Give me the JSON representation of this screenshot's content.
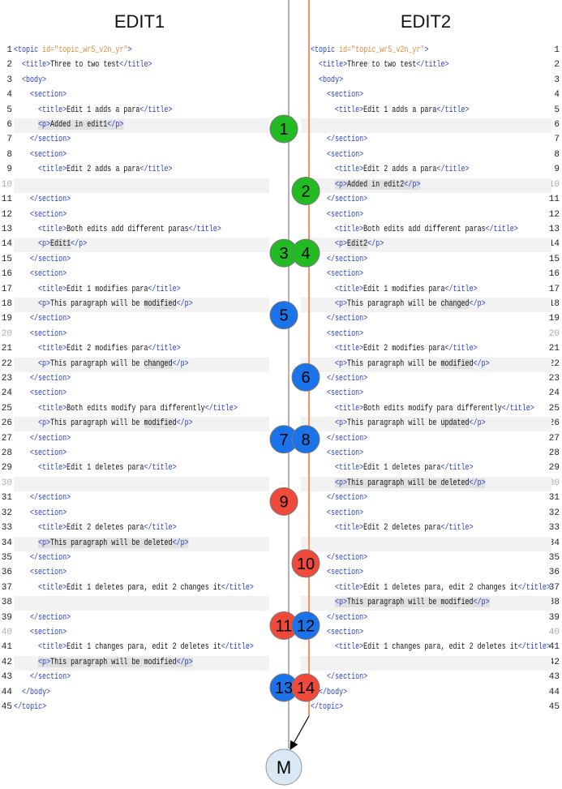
{
  "headers": {
    "left": "EDIT1",
    "right": "EDIT2"
  },
  "colors": {
    "add": "#22bb22",
    "modify": "#1a73e8",
    "delete": "#f04a3a",
    "edit1_line": "#9a9a9a",
    "edit2_line": "#f4936b",
    "merge": "#d8e9f5"
  },
  "merge_label": "M",
  "left": [
    {
      "n": 1,
      "i": 0,
      "code": "<topic id=\"topic_wr5_v2n_yr\">"
    },
    {
      "n": 2,
      "i": 1,
      "code": "<title>Three to two test</title>"
    },
    {
      "n": 3,
      "i": 1,
      "code": "<body>"
    },
    {
      "n": 4,
      "i": 2,
      "code": "<section>"
    },
    {
      "n": 5,
      "i": 3,
      "code": "<title>Edit 1 adds a para</title>"
    },
    {
      "n": 6,
      "i": 3,
      "code": "<p>Added in edit1</p>",
      "band": true,
      "mark": "*"
    },
    {
      "n": 7,
      "i": 2,
      "code": "</section>"
    },
    {
      "n": 8,
      "i": 2,
      "code": "<section>"
    },
    {
      "n": 9,
      "i": 3,
      "code": "<title>Edit 2 adds a para</title>"
    },
    {
      "n": 10,
      "i": 3,
      "code": "",
      "band": true
    },
    {
      "n": 11,
      "i": 2,
      "code": "</section>"
    },
    {
      "n": 12,
      "i": 2,
      "code": "<section>"
    },
    {
      "n": 13,
      "i": 3,
      "code": "<title>Both edits add different paras</title>"
    },
    {
      "n": 14,
      "i": 3,
      "code": "<p>Edit1</p>",
      "band": true,
      "mark": "Edit1"
    },
    {
      "n": 15,
      "i": 2,
      "code": "</section>"
    },
    {
      "n": 16,
      "i": 2,
      "code": "<section>"
    },
    {
      "n": 17,
      "i": 3,
      "code": "<title>Edit 1 modifies para</title>"
    },
    {
      "n": 18,
      "i": 3,
      "code": "<p>This paragraph will be modified</p>",
      "band": true,
      "mark": "modified"
    },
    {
      "n": 19,
      "i": 2,
      "code": "</section>"
    },
    {
      "n": 20,
      "i": 2,
      "code": "<section>"
    },
    {
      "n": 21,
      "i": 3,
      "code": "<title>Edit 2 modifies para</title>"
    },
    {
      "n": 22,
      "i": 3,
      "code": "<p>This paragraph will be changed</p>",
      "band": true,
      "mark": "changed"
    },
    {
      "n": 23,
      "i": 2,
      "code": "</section>"
    },
    {
      "n": 24,
      "i": 2,
      "code": "<section>"
    },
    {
      "n": 25,
      "i": 3,
      "code": "<title>Both edits modify para differently</title>"
    },
    {
      "n": 26,
      "i": 3,
      "code": "<p>This paragraph will be modified</p>",
      "band": true,
      "mark": "modified"
    },
    {
      "n": 27,
      "i": 2,
      "code": "</section>"
    },
    {
      "n": 28,
      "i": 2,
      "code": "<section>"
    },
    {
      "n": 29,
      "i": 3,
      "code": "<title>Edit 1 deletes para</title>"
    },
    {
      "n": 30,
      "i": 3,
      "code": "",
      "band": true
    },
    {
      "n": 31,
      "i": 2,
      "code": "</section>"
    },
    {
      "n": 32,
      "i": 2,
      "code": "<section>"
    },
    {
      "n": 33,
      "i": 3,
      "code": "<title>Edit 2 deletes para</title>"
    },
    {
      "n": 34,
      "i": 3,
      "code": "<p>This paragraph will be deleted</p>",
      "band": true,
      "mark": "*"
    },
    {
      "n": 35,
      "i": 2,
      "code": "</section>"
    },
    {
      "n": 36,
      "i": 2,
      "code": "<section>"
    },
    {
      "n": 37,
      "i": 3,
      "code": "<title>Edit 1 deletes para, edit 2 changes it</title>"
    },
    {
      "n": 38,
      "i": 3,
      "code": "",
      "band": true
    },
    {
      "n": 39,
      "i": 2,
      "code": "</section>"
    },
    {
      "n": 40,
      "i": 2,
      "code": "<section>"
    },
    {
      "n": 41,
      "i": 3,
      "code": "<title>Edit 1 changes para, edit 2 deletes it</title>"
    },
    {
      "n": 42,
      "i": 3,
      "code": "<p>This paragraph will be modified</p>",
      "band": true,
      "mark": "*"
    },
    {
      "n": 43,
      "i": 2,
      "code": "</section>"
    },
    {
      "n": 44,
      "i": 1,
      "code": "</body>"
    },
    {
      "n": 45,
      "i": 0,
      "code": "</topic>"
    }
  ],
  "right": [
    {
      "n": 1,
      "i": 0,
      "code": "<topic id=\"topic_wr5_v2n_yr\">"
    },
    {
      "n": 2,
      "i": 1,
      "code": "<title>Three to two test</title>"
    },
    {
      "n": 3,
      "i": 1,
      "code": "<body>"
    },
    {
      "n": 4,
      "i": 2,
      "code": "<section>"
    },
    {
      "n": 5,
      "i": 3,
      "code": "<title>Edit 1 adds a para</title>"
    },
    {
      "n": 6,
      "i": 3,
      "code": "",
      "band": true
    },
    {
      "n": 7,
      "i": 2,
      "code": "</section>"
    },
    {
      "n": 8,
      "i": 2,
      "code": "<section>"
    },
    {
      "n": 9,
      "i": 3,
      "code": "<title>Edit 2 adds a para</title>"
    },
    {
      "n": 10,
      "i": 3,
      "code": "<p>Added in edit2</p>",
      "band": true,
      "mark": "*"
    },
    {
      "n": 11,
      "i": 2,
      "code": "</section>"
    },
    {
      "n": 12,
      "i": 2,
      "code": "<section>"
    },
    {
      "n": 13,
      "i": 3,
      "code": "<title>Both edits add different paras</title>"
    },
    {
      "n": 14,
      "i": 3,
      "code": "<p>Edit2</p>",
      "band": true,
      "mark": "Edit2"
    },
    {
      "n": 15,
      "i": 2,
      "code": "</section>"
    },
    {
      "n": 16,
      "i": 2,
      "code": "<section>"
    },
    {
      "n": 17,
      "i": 3,
      "code": "<title>Edit 1 modifies para</title>"
    },
    {
      "n": 18,
      "i": 3,
      "code": "<p>This paragraph will be changed</p>",
      "band": true,
      "mark": "changed"
    },
    {
      "n": 19,
      "i": 2,
      "code": "</section>"
    },
    {
      "n": 20,
      "i": 2,
      "code": "<section>"
    },
    {
      "n": 21,
      "i": 3,
      "code": "<title>Edit 2 modifies para</title>"
    },
    {
      "n": 22,
      "i": 3,
      "code": "<p>This paragraph will be modified</p>",
      "band": true,
      "mark": "modified"
    },
    {
      "n": 23,
      "i": 2,
      "code": "</section>"
    },
    {
      "n": 24,
      "i": 2,
      "code": "<section>"
    },
    {
      "n": 25,
      "i": 3,
      "code": "<title>Both edits modify para differently</title>"
    },
    {
      "n": 26,
      "i": 3,
      "code": "<p>This paragraph will be updated</p>",
      "band": true,
      "mark": "updated"
    },
    {
      "n": 27,
      "i": 2,
      "code": "</section>"
    },
    {
      "n": 28,
      "i": 2,
      "code": "<section>"
    },
    {
      "n": 29,
      "i": 3,
      "code": "<title>Edit 1 deletes para</title>"
    },
    {
      "n": 30,
      "i": 3,
      "code": "<p>This paragraph will be deleted</p>",
      "band": true,
      "mark": "*"
    },
    {
      "n": 31,
      "i": 2,
      "code": "</section>"
    },
    {
      "n": 32,
      "i": 2,
      "code": "<section>"
    },
    {
      "n": 33,
      "i": 3,
      "code": "<title>Edit 2 deletes para</title>"
    },
    {
      "n": 34,
      "i": 3,
      "code": "",
      "band": true
    },
    {
      "n": 35,
      "i": 2,
      "code": "</section>"
    },
    {
      "n": 36,
      "i": 2,
      "code": "<section>"
    },
    {
      "n": 37,
      "i": 3,
      "code": "<title>Edit 1 deletes para, edit 2 changes it</title>"
    },
    {
      "n": 38,
      "i": 3,
      "code": "<p>This paragraph will be modified</p>",
      "band": true,
      "mark": "*"
    },
    {
      "n": 39,
      "i": 2,
      "code": "</section>"
    },
    {
      "n": 40,
      "i": 2,
      "code": "<section>"
    },
    {
      "n": 41,
      "i": 3,
      "code": "<title>Edit 1 changes para, edit 2 deletes it</title>"
    },
    {
      "n": 42,
      "i": 3,
      "code": "",
      "band": true
    },
    {
      "n": 43,
      "i": 2,
      "code": "</section>"
    },
    {
      "n": 44,
      "i": 1,
      "code": "</body>"
    },
    {
      "n": 45,
      "i": 0,
      "code": "</topic>"
    }
  ],
  "markers": [
    {
      "label": "1",
      "side": "left",
      "row": 6,
      "kind": "add"
    },
    {
      "label": "2",
      "side": "right",
      "row": 10,
      "kind": "add"
    },
    {
      "label": "3",
      "side": "left",
      "row": 14,
      "kind": "add"
    },
    {
      "label": "4",
      "side": "right",
      "row": 14,
      "kind": "add"
    },
    {
      "label": "5",
      "side": "left",
      "row": 18,
      "kind": "modify"
    },
    {
      "label": "6",
      "side": "right",
      "row": 22,
      "kind": "modify"
    },
    {
      "label": "7",
      "side": "left",
      "row": 26,
      "kind": "modify"
    },
    {
      "label": "8",
      "side": "right",
      "row": 26,
      "kind": "modify"
    },
    {
      "label": "9",
      "side": "left",
      "row": 30,
      "kind": "delete"
    },
    {
      "label": "10",
      "side": "right",
      "row": 34,
      "kind": "delete"
    },
    {
      "label": "11",
      "side": "left",
      "row": 38,
      "kind": "delete"
    },
    {
      "label": "12",
      "side": "right",
      "row": 38,
      "kind": "modify"
    },
    {
      "label": "13",
      "side": "left",
      "row": 42,
      "kind": "modify"
    },
    {
      "label": "14",
      "side": "right",
      "row": 42,
      "kind": "delete"
    }
  ]
}
